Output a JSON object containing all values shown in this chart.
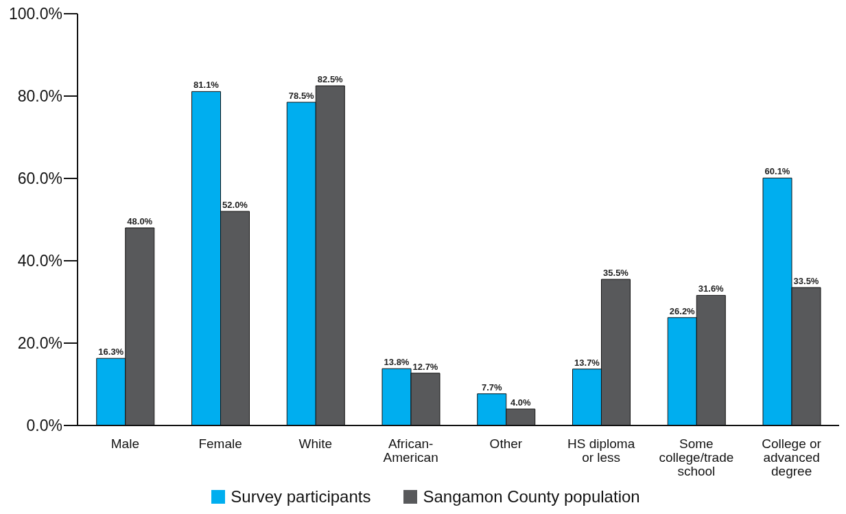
{
  "chart_data": {
    "type": "bar",
    "categories": [
      "Male",
      "Female",
      "White",
      "African-American",
      "Other",
      "HS diploma or less",
      "Some college/trade school",
      "College or advanced degree"
    ],
    "series": [
      {
        "name": "Survey participants",
        "color": "#00aeef",
        "values": [
          16.3,
          81.1,
          78.5,
          13.8,
          7.7,
          13.7,
          26.2,
          60.1
        ],
        "value_labels": [
          "16.3%",
          "81.1%",
          "78.5%",
          "13.8%",
          "7.7%",
          "13.7%",
          "26.2%",
          "60.1%"
        ]
      },
      {
        "name": "Sangamon County population",
        "color": "#58595b",
        "values": [
          48.0,
          52.0,
          82.5,
          12.7,
          4.0,
          35.5,
          31.6,
          33.5
        ],
        "value_labels": [
          "48.0%",
          "52.0%",
          "82.5%",
          "12.7%",
          "4.0%",
          "35.5%",
          "31.6%",
          "33.5%"
        ]
      }
    ],
    "ylim": [
      0,
      100
    ],
    "yticks": [
      {
        "value": 0,
        "label": "0.0%"
      },
      {
        "value": 20,
        "label": "20.0%"
      },
      {
        "value": 40,
        "label": "40.0%"
      },
      {
        "value": 60,
        "label": "60.0%"
      },
      {
        "value": 80,
        "label": "80.0%"
      },
      {
        "value": 100,
        "label": "100.0%"
      }
    ],
    "grid": false,
    "legend": "bottom"
  }
}
